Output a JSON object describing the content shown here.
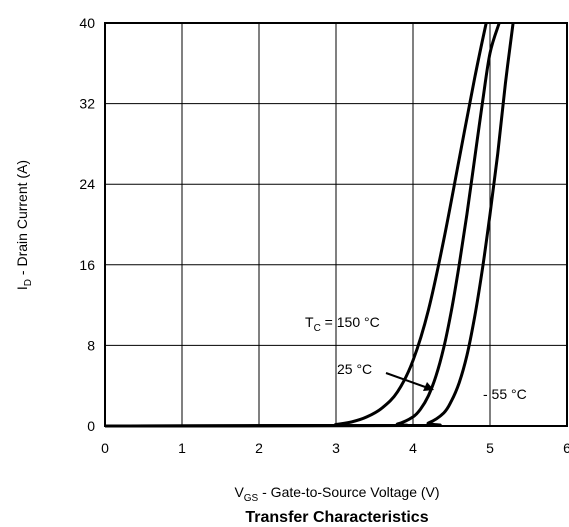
{
  "chart_data": {
    "type": "line",
    "title": "Transfer Characteristics",
    "xlabel": {
      "main": "V",
      "sub": "GS",
      "rest": " - Gate-to-Source Voltage (V)"
    },
    "ylabel": {
      "main": "I",
      "sub": "D",
      "rest": " - Drain Current (A)"
    },
    "xlim": [
      0,
      6
    ],
    "ylim": [
      0,
      40
    ],
    "xticks": [
      0,
      1,
      2,
      3,
      4,
      5,
      6
    ],
    "yticks": [
      0,
      8,
      16,
      24,
      32,
      40
    ],
    "grid": true,
    "series": [
      {
        "name": "TC = 150 °C",
        "x": [
          0,
          2.8,
          3.0,
          3.2,
          3.4,
          3.6,
          3.8,
          4.0,
          4.2,
          4.4,
          4.6,
          4.8,
          4.95
        ],
        "y": [
          0,
          0.05,
          0.15,
          0.4,
          0.9,
          1.8,
          3.4,
          6.5,
          11.5,
          18.5,
          26.5,
          34.5,
          40
        ]
      },
      {
        "name": "25 °C",
        "x": [
          0,
          3.6,
          3.8,
          4.0,
          4.1,
          4.2,
          4.3,
          4.4,
          4.5,
          4.6,
          4.7,
          4.8,
          4.9,
          5.0,
          5.12
        ],
        "y": [
          0,
          0.05,
          0.2,
          0.9,
          1.7,
          3.0,
          5.0,
          7.8,
          11.5,
          16.0,
          21.0,
          26.5,
          32.0,
          37.0,
          40
        ]
      },
      {
        "name": "- 55 °C",
        "x": [
          0,
          4.0,
          4.2,
          4.4,
          4.5,
          4.6,
          4.7,
          4.8,
          4.9,
          5.0,
          5.1,
          5.2,
          5.3
        ],
        "y": [
          0,
          0.05,
          0.3,
          1.3,
          2.5,
          4.3,
          7.0,
          10.8,
          15.5,
          21.0,
          27.0,
          34.0,
          40
        ]
      }
    ],
    "annotations": [
      {
        "main": "T",
        "sub": "C",
        "rest": " = 150 °C"
      },
      {
        "text": "25 °C"
      },
      {
        "text": "- 55 °C"
      }
    ]
  }
}
